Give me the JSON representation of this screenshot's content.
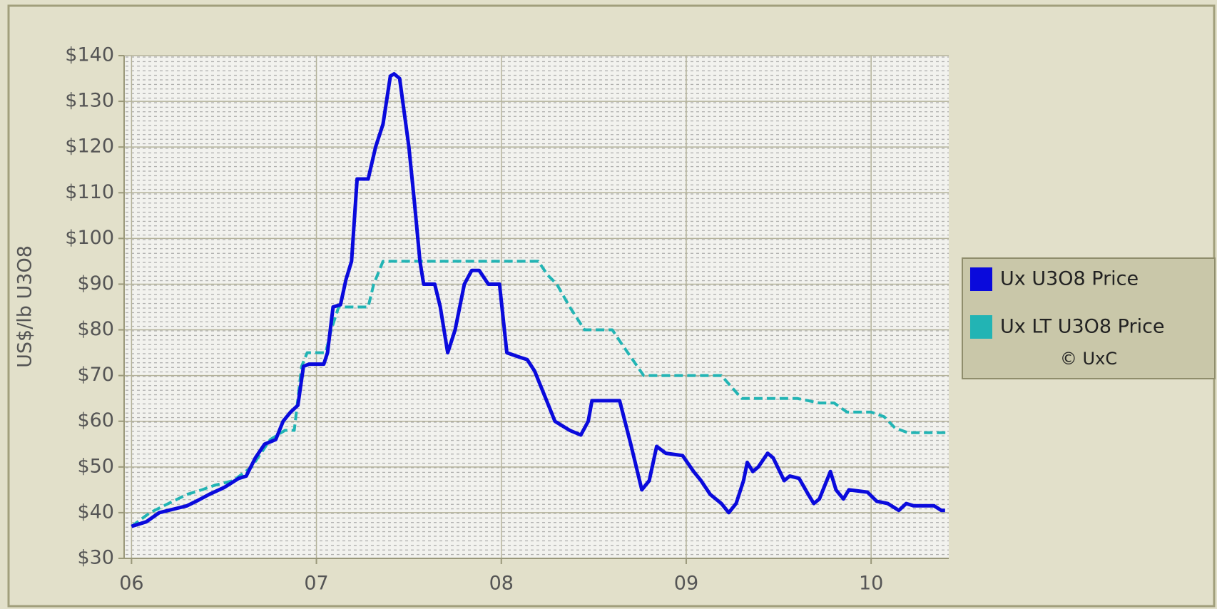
{
  "chart_data": {
    "type": "line",
    "y_label": "US$/lb U3O8",
    "xlim": [
      5.96,
      10.42
    ],
    "xticks": [
      {
        "value": 6,
        "label": "06"
      },
      {
        "value": 7,
        "label": "07"
      },
      {
        "value": 8,
        "label": "08"
      },
      {
        "value": 9,
        "label": "09"
      },
      {
        "value": 10,
        "label": "10"
      }
    ],
    "ylim": [
      30,
      140
    ],
    "yticks": [
      {
        "value": 30,
        "label": "$30"
      },
      {
        "value": 40,
        "label": "$40"
      },
      {
        "value": 50,
        "label": "$50"
      },
      {
        "value": 60,
        "label": "$60"
      },
      {
        "value": 70,
        "label": "$70"
      },
      {
        "value": 80,
        "label": "$80"
      },
      {
        "value": 90,
        "label": "$90"
      },
      {
        "value": 100,
        "label": "$100"
      },
      {
        "value": 110,
        "label": "$110"
      },
      {
        "value": 120,
        "label": "$120"
      },
      {
        "value": 130,
        "label": "$130"
      },
      {
        "value": 140,
        "label": "$140"
      }
    ],
    "grid": true,
    "legend_position": "right",
    "legend_note": "© UxC",
    "series": [
      {
        "name": "Ux U3O8 Price",
        "color": "#0a0adc",
        "line_style": "solid",
        "x": [
          6.0,
          6.08,
          6.15,
          6.25,
          6.3,
          6.35,
          6.42,
          6.5,
          6.58,
          6.62,
          6.67,
          6.72,
          6.78,
          6.82,
          6.86,
          6.9,
          6.93,
          6.96,
          7.04,
          7.06,
          7.09,
          7.13,
          7.16,
          7.19,
          7.22,
          7.28,
          7.32,
          7.36,
          7.4,
          7.42,
          7.45,
          7.5,
          7.53,
          7.56,
          7.58,
          7.64,
          7.67,
          7.71,
          7.75,
          7.8,
          7.84,
          7.88,
          7.93,
          7.99,
          8.03,
          8.1,
          8.14,
          8.18,
          8.24,
          8.29,
          8.37,
          8.43,
          8.47,
          8.49,
          8.64,
          8.7,
          8.76,
          8.8,
          8.84,
          8.89,
          8.98,
          9.04,
          9.08,
          9.13,
          9.19,
          9.23,
          9.27,
          9.31,
          9.33,
          9.36,
          9.39,
          9.44,
          9.47,
          9.53,
          9.56,
          9.61,
          9.66,
          9.69,
          9.72,
          9.78,
          9.81,
          9.85,
          9.88,
          9.98,
          10.03,
          10.09,
          10.15,
          10.19,
          10.23,
          10.34,
          10.38,
          10.4
        ],
        "values": [
          37,
          38,
          40,
          41,
          41.5,
          42.5,
          44,
          45.5,
          47.5,
          48,
          52,
          55,
          56,
          60,
          62,
          63.5,
          72,
          72.5,
          72.5,
          75,
          85,
          85.5,
          91,
          95,
          113,
          113,
          120,
          125,
          135.5,
          136,
          135,
          120,
          108,
          95,
          90,
          90,
          85,
          75,
          80,
          90,
          93,
          93,
          90,
          90,
          75,
          74,
          73.5,
          71,
          65,
          60,
          58,
          57,
          60,
          64.5,
          64.5,
          55,
          45,
          47,
          54.5,
          53,
          52.5,
          49,
          47,
          44,
          42,
          40,
          42,
          47,
          51,
          49,
          50,
          53,
          52,
          47,
          48,
          47.5,
          44,
          42,
          43,
          49,
          45,
          43,
          45,
          44.5,
          42.5,
          42,
          40.5,
          42,
          41.5,
          41.5,
          40.5,
          40.5
        ]
      },
      {
        "name": "Ux LT U3O8 Price",
        "color": "#22b4b4",
        "line_style": "dashed",
        "x": [
          6.0,
          6.1,
          6.2,
          6.3,
          6.38,
          6.45,
          6.55,
          6.65,
          6.75,
          6.83,
          6.88,
          6.92,
          6.95,
          7.05,
          7.08,
          7.12,
          7.28,
          7.31,
          7.36,
          8.2,
          8.25,
          8.3,
          8.37,
          8.45,
          8.6,
          8.65,
          8.77,
          9.19,
          9.3,
          9.6,
          9.72,
          9.8,
          9.87,
          10.0,
          10.07,
          10.13,
          10.2,
          10.41
        ],
        "values": [
          37,
          40,
          42,
          44,
          45,
          46,
          47,
          50,
          56,
          58,
          58,
          72,
          75,
          75,
          80,
          85,
          85,
          90,
          95,
          95,
          92,
          90,
          85,
          80,
          80,
          77,
          70,
          70,
          65,
          65,
          64,
          64,
          62,
          62,
          61,
          58.5,
          57.5,
          57.5
        ]
      }
    ]
  }
}
